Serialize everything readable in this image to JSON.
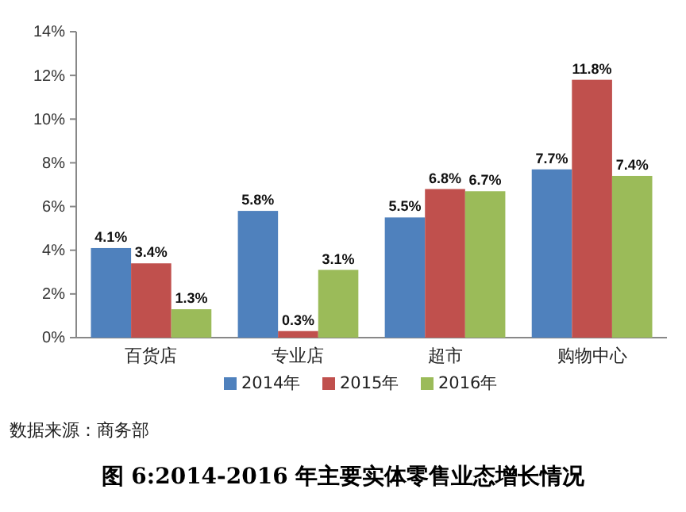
{
  "chart_data": {
    "type": "bar",
    "title": "图 6:2014-2016 年主要实体零售业态增长情况",
    "categories": [
      "百货店",
      "专业店",
      "超市",
      "购物中心"
    ],
    "series": [
      {
        "name": "2014年",
        "color": "#4f81bd",
        "values": [
          4.1,
          5.8,
          5.5,
          7.7
        ],
        "value_labels": [
          "4.1%",
          "5.8%",
          "5.5%",
          "7.7%"
        ]
      },
      {
        "name": "2015年",
        "color": "#c0504d",
        "values": [
          3.4,
          0.3,
          6.8,
          11.8
        ],
        "value_labels": [
          "3.4%",
          "0.3%",
          "6.8%",
          "11.8%"
        ]
      },
      {
        "name": "2016年",
        "color": "#9bbb59",
        "values": [
          1.3,
          3.1,
          6.7,
          7.4
        ],
        "value_labels": [
          "1.3%",
          "3.1%",
          "6.7%",
          "7.4%"
        ]
      }
    ],
    "ylim": [
      0,
      14
    ],
    "yticks": [
      {
        "value": 0,
        "label": "0%"
      },
      {
        "value": 2,
        "label": "2%"
      },
      {
        "value": 4,
        "label": "4%"
      },
      {
        "value": 6,
        "label": "6%"
      },
      {
        "value": 8,
        "label": "8%"
      },
      {
        "value": 10,
        "label": "10%"
      },
      {
        "value": 12,
        "label": "12%"
      },
      {
        "value": 14,
        "label": "14%"
      }
    ],
    "legend": "bottom",
    "grid": false,
    "annotations": [
      "数据来源：商务部"
    ]
  }
}
